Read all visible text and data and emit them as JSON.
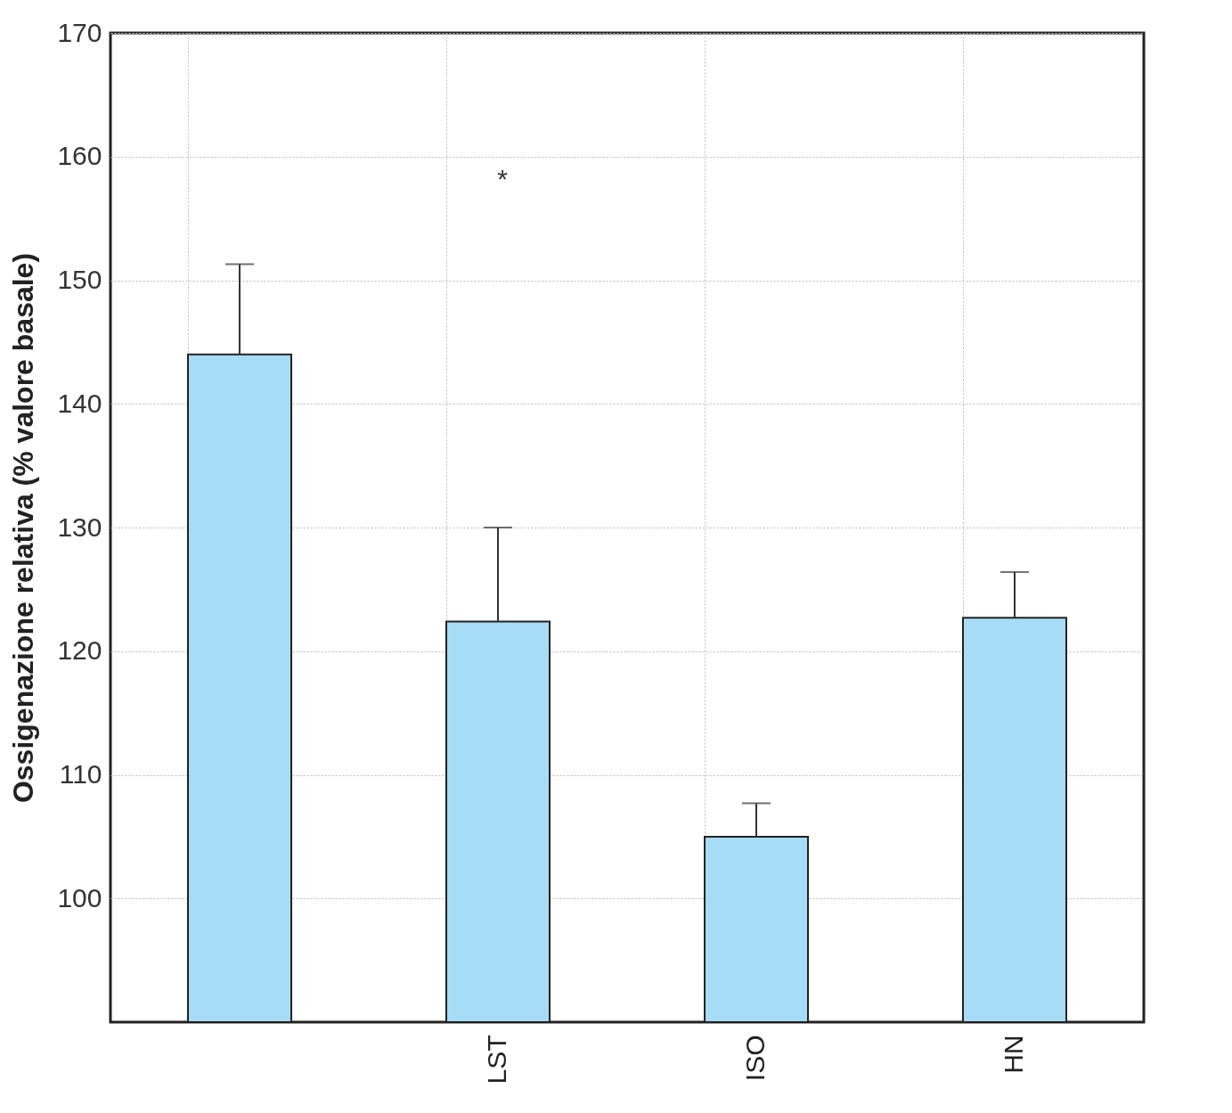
{
  "chart_data": {
    "type": "bar",
    "ylabel": "Ossigenazione relativa (% valore basale)",
    "categories": [
      null,
      "LST",
      "ISO",
      "HN"
    ],
    "values": [
      144,
      122.4,
      105,
      122.7
    ],
    "errors": [
      [
        144,
        151.3
      ],
      [
        122.4,
        130
      ],
      [
        105,
        107.7
      ],
      [
        122.7,
        126.4
      ]
    ],
    "color": "#a6dcf5",
    "ylim": [
      90,
      170
    ],
    "yticks": [
      100,
      110,
      120,
      130,
      140,
      150,
      160,
      170
    ],
    "grid": true,
    "annotations": [
      "*"
    ]
  }
}
